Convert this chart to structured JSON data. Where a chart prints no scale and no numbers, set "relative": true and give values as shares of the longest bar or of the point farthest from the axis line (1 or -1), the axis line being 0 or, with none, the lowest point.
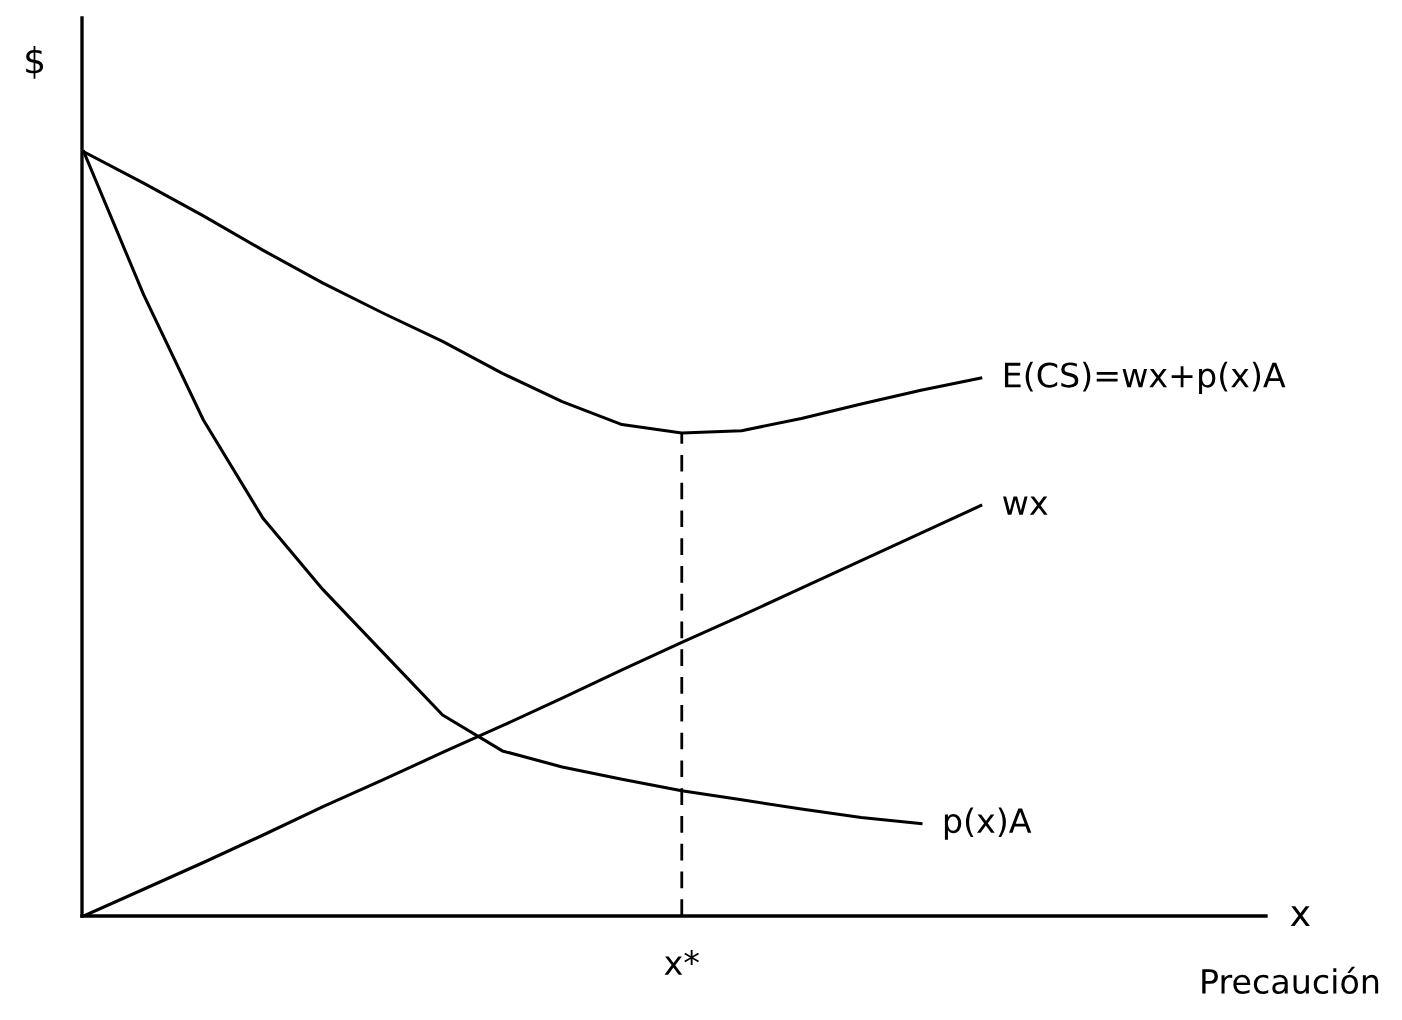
{
  "chart_data": {
    "type": "line",
    "relative": true,
    "ylabel": "$",
    "categories": [
      null,
      null,
      null,
      null,
      null,
      null,
      null,
      null,
      null,
      null,
      null,
      null,
      null,
      null,
      null,
      null
    ],
    "series": [
      {
        "name": "E(CS)=wx+p(x)A",
        "color": "#000000",
        "values": [
          1,
          0.959,
          0.916,
          0.871,
          0.828,
          0.789,
          0.752,
          0.71,
          0.673,
          0.643,
          0.632,
          0.635,
          0.651,
          0.67,
          0.688,
          0.704
        ]
      },
      {
        "name": "wx",
        "color": "#000000",
        "values": [
          0,
          0.035,
          0.07,
          0.106,
          0.143,
          0.178,
          0.214,
          0.249,
          0.285,
          0.322,
          0.358,
          0.393,
          0.429,
          0.465,
          0.501,
          0.537
        ]
      },
      {
        "name": "p(x)A",
        "color": "#000000",
        "values": [
          1,
          0.813,
          0.649,
          0.52,
          0.427,
          0.345,
          0.263,
          0.216,
          0.195,
          0.179,
          0.164,
          0.152,
          0.14,
          0.129,
          0.121,
          null
        ]
      }
    ],
    "annotations": [
      "x",
      "x*",
      "Precaución"
    ],
    "grid": false,
    "legend": false,
    "marker": "none"
  }
}
